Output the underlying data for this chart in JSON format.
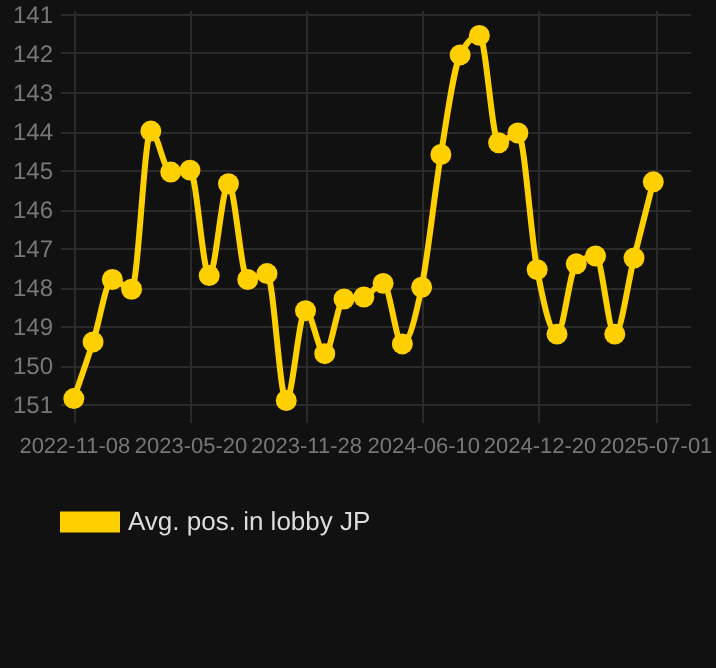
{
  "chart_data": {
    "type": "line",
    "x": [
      "2022-11-08",
      "2022-12-10",
      "2023-01-11",
      "2023-02-12",
      "2023-03-16",
      "2023-04-18",
      "2023-05-20",
      "2023-06-21",
      "2023-07-23",
      "2023-08-24",
      "2023-09-25",
      "2023-10-27",
      "2023-11-28",
      "2023-12-30",
      "2024-01-31",
      "2024-03-04",
      "2024-04-05",
      "2024-05-07",
      "2024-06-08",
      "2024-07-10",
      "2024-08-11",
      "2024-09-12",
      "2024-10-14",
      "2024-11-15",
      "2024-12-17",
      "2025-01-19",
      "2025-02-20",
      "2025-03-24",
      "2025-04-25",
      "2025-05-27",
      "2025-06-28"
    ],
    "series": [
      {
        "name": "Avg. pos. in lobby JP",
        "color": "#ffd000",
        "values": [
          150.85,
          149.4,
          147.8,
          148.05,
          144.0,
          145.05,
          145.0,
          147.7,
          145.35,
          147.8,
          147.65,
          150.9,
          148.6,
          149.7,
          148.3,
          148.25,
          147.9,
          149.45,
          148.0,
          144.6,
          142.05,
          141.55,
          144.3,
          144.05,
          147.55,
          149.2,
          147.4,
          147.2,
          149.2,
          147.25,
          145.3
        ]
      }
    ],
    "xlim": [
      "2022-10-16",
      "2025-08-28"
    ],
    "xticks": [
      "2022-11-08",
      "2023-05-20",
      "2023-11-28",
      "2024-06-10",
      "2024-12-20",
      "2025-07-01"
    ],
    "ylim": [
      151.45,
      140.9
    ],
    "yticks": [
      141,
      142,
      143,
      144,
      145,
      146,
      147,
      148,
      149,
      150,
      151
    ],
    "grid": true,
    "legend": "bottom",
    "marker": "circle",
    "line_style": "solid"
  }
}
